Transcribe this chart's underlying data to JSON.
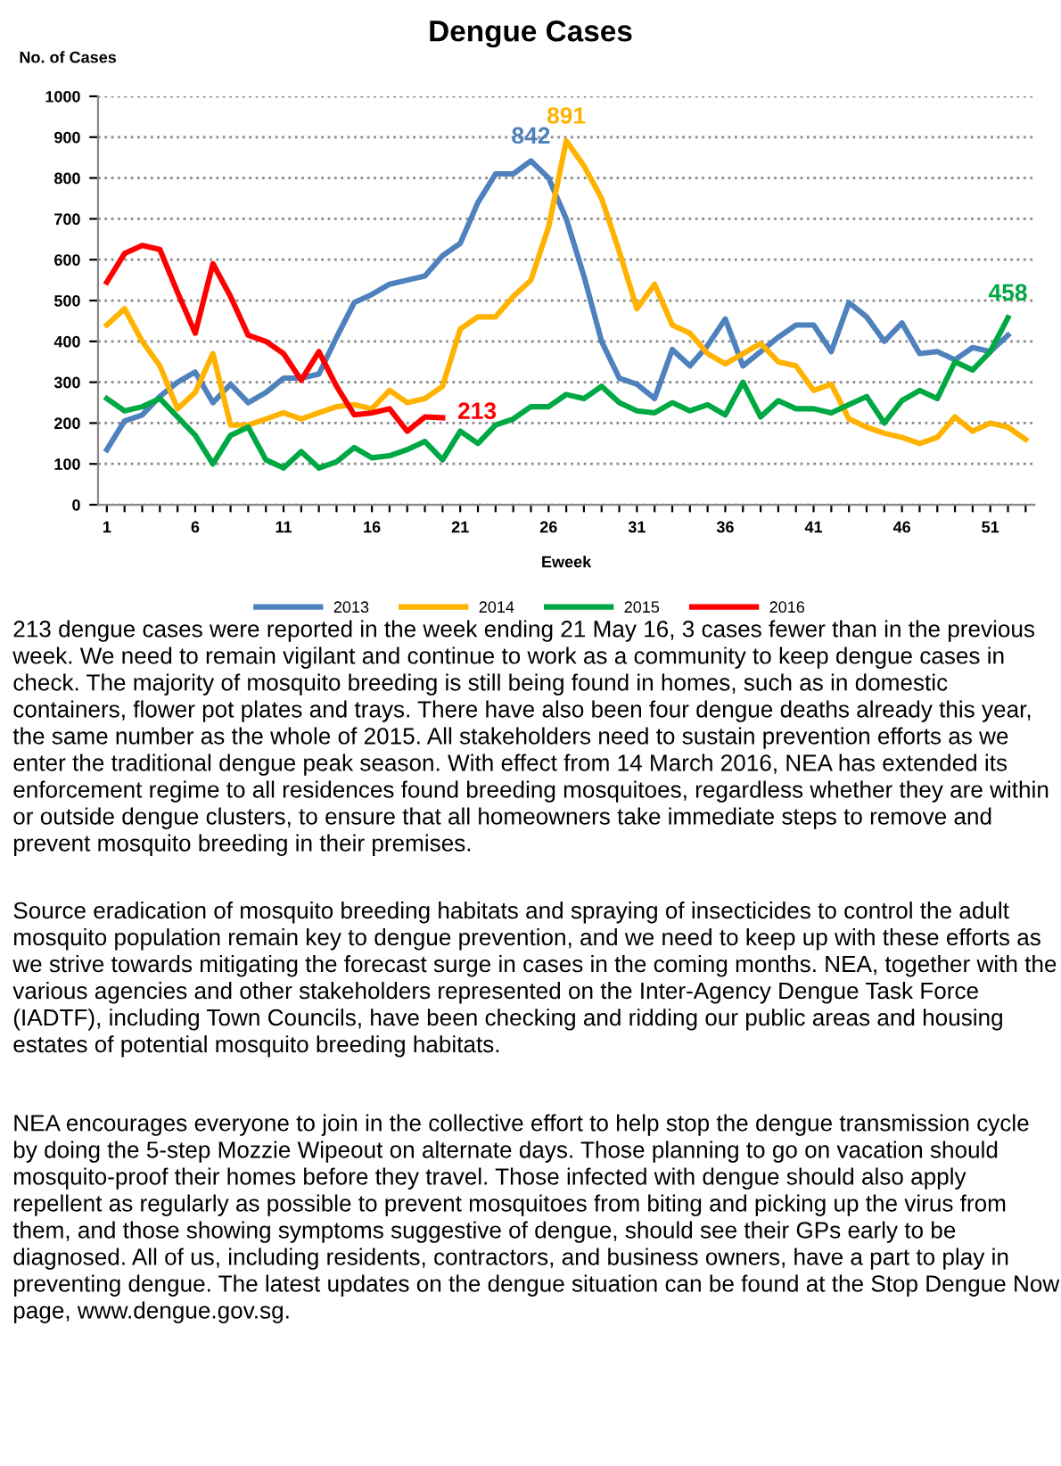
{
  "chart_data": {
    "type": "line",
    "title": "Dengue Cases",
    "ylabel": "No. of Cases",
    "xlabel": "Eweek",
    "categories": [
      "1",
      null,
      null,
      null,
      null,
      "6",
      null,
      null,
      null,
      null,
      "11",
      null,
      null,
      null,
      null,
      "16",
      null,
      null,
      null,
      null,
      "21",
      null,
      null,
      null,
      null,
      "26",
      null,
      null,
      null,
      null,
      "31",
      null,
      null,
      null,
      null,
      "36",
      null,
      null,
      null,
      null,
      "41",
      null,
      null,
      null,
      null,
      "46",
      null,
      null,
      null,
      null,
      "51",
      null,
      null
    ],
    "series": [
      {
        "name": "2013",
        "color": "#4f81bd",
        "values": [
          135,
          205,
          220,
          265,
          300,
          325,
          250,
          295,
          250,
          275,
          310,
          310,
          320,
          410,
          495,
          515,
          540,
          550,
          560,
          610,
          640,
          740,
          810,
          810,
          842,
          800,
          700,
          560,
          400,
          310,
          295,
          260,
          380,
          340,
          390,
          455,
          340,
          375,
          410,
          440,
          440,
          375,
          495,
          460,
          400,
          445,
          370,
          375,
          355,
          385,
          375,
          415,
          null
        ],
        "value_labels": [
          null,
          null,
          null,
          null,
          null,
          null,
          null,
          null,
          null,
          null,
          null,
          null,
          null,
          null,
          null,
          null,
          null,
          null,
          null,
          null,
          null,
          null,
          null,
          null,
          "842",
          null,
          null,
          null,
          null,
          null,
          null,
          null,
          null,
          null,
          null,
          null,
          null,
          null,
          null,
          null,
          null,
          null,
          null,
          null,
          null,
          null,
          null,
          null,
          null,
          null,
          null,
          null,
          null
        ]
      },
      {
        "name": "2014",
        "color": "#ffb300",
        "values": [
          440,
          480,
          400,
          340,
          235,
          275,
          370,
          195,
          195,
          210,
          225,
          210,
          225,
          240,
          245,
          235,
          280,
          250,
          260,
          290,
          430,
          460,
          460,
          510,
          550,
          680,
          891,
          830,
          750,
          620,
          480,
          540,
          440,
          420,
          370,
          345,
          370,
          395,
          350,
          340,
          280,
          295,
          210,
          190,
          175,
          165,
          150,
          165,
          215,
          180,
          200,
          190,
          160
        ],
        "value_labels": [
          null,
          null,
          null,
          null,
          null,
          null,
          null,
          null,
          null,
          null,
          null,
          null,
          null,
          null,
          null,
          null,
          null,
          null,
          null,
          null,
          null,
          null,
          null,
          null,
          null,
          null,
          "891",
          null,
          null,
          null,
          null,
          null,
          null,
          null,
          null,
          null,
          null,
          null,
          null,
          null,
          null,
          null,
          null,
          null,
          null,
          null,
          null,
          null,
          null,
          null,
          null,
          null,
          null
        ]
      },
      {
        "name": "2015",
        "color": "#00a843",
        "values": [
          260,
          230,
          240,
          260,
          215,
          170,
          100,
          170,
          190,
          110,
          90,
          130,
          90,
          105,
          140,
          115,
          120,
          135,
          155,
          110,
          180,
          150,
          195,
          210,
          240,
          240,
          270,
          260,
          290,
          250,
          230,
          225,
          250,
          230,
          245,
          220,
          300,
          215,
          255,
          235,
          235,
          225,
          245,
          265,
          200,
          255,
          280,
          260,
          350,
          330,
          375,
          458,
          null
        ],
        "value_labels": [
          null,
          null,
          null,
          null,
          null,
          null,
          null,
          null,
          null,
          null,
          null,
          null,
          null,
          null,
          null,
          null,
          null,
          null,
          null,
          null,
          null,
          null,
          null,
          null,
          null,
          null,
          null,
          null,
          null,
          null,
          null,
          null,
          null,
          null,
          null,
          null,
          null,
          null,
          null,
          null,
          null,
          null,
          null,
          null,
          null,
          null,
          null,
          null,
          null,
          null,
          null,
          "458",
          null
        ]
      },
      {
        "name": "2016",
        "color": "#ff0000",
        "values": [
          545,
          615,
          635,
          625,
          520,
          420,
          590,
          510,
          415,
          400,
          370,
          305,
          375,
          290,
          220,
          225,
          235,
          180,
          215,
          213,
          null,
          null,
          null,
          null,
          null,
          null,
          null,
          null,
          null,
          null,
          null,
          null,
          null,
          null,
          null,
          null,
          null,
          null,
          null,
          null,
          null,
          null,
          null,
          null,
          null,
          null,
          null,
          null,
          null,
          null,
          null,
          null,
          null
        ],
        "value_labels": [
          null,
          null,
          null,
          null,
          null,
          null,
          null,
          null,
          null,
          null,
          null,
          null,
          null,
          null,
          null,
          null,
          null,
          null,
          null,
          "213",
          null,
          null,
          null,
          null,
          null,
          null,
          null,
          null,
          null,
          null,
          null,
          null,
          null,
          null,
          null,
          null,
          null,
          null,
          null,
          null,
          null,
          null,
          null,
          null,
          null,
          null,
          null,
          null,
          null,
          null,
          null,
          null,
          null
        ]
      }
    ],
    "ylim": [
      0,
      1000
    ],
    "yticks": [
      0,
      100,
      200,
      300,
      400,
      500,
      600,
      700,
      800,
      900,
      1000
    ],
    "grid": "y",
    "legend": "bottom",
    "marker": "none",
    "line_style": "solid",
    "annotations": [
      "213 dengue cases were reported in the week ending 21 May 16, 3 cases fewer than in the previous week. We need to remain vigilant and continue to work as a community to keep dengue cases in check. The majority of mosquito breeding is still being found in homes, such as in domestic containers, flower pot plates and trays. There have also been four dengue deaths already this year, the same number as the whole of 2015. All stakeholders need to sustain prevention efforts as we enter the traditional dengue peak season. With effect from 14 March 2016, NEA has extended its enforcement regime to all residences found breeding mosquitoes, regardless whether they are within or outside dengue clusters, to ensure that all homeowners take immediate steps to remove and prevent mosquito breeding in their premises.",
      "Source eradication of mosquito breeding habitats and spraying of insecticides to control the adult mosquito population remain key to dengue prevention, and we need to keep up with these efforts as we strive towards mitigating the forecast surge in cases in the coming months. NEA, together with the various agencies and other stakeholders represented on the Inter-Agency Dengue Task Force (IADTF), including Town Councils, have been checking and ridding our public areas and housing estates of potential mosquito breeding habitats.",
      "NEA encourages everyone to join in the collective effort to help stop the dengue transmission cycle by doing the 5-step Mozzie Wipeout on alternate days. Those planning to go on vacation should mosquito-proof their homes before they travel. Those infected with dengue should also apply repellent as regularly as possible to prevent mosquitoes from biting and picking up the virus from them, and those showing symptoms suggestive of dengue, should see their GPs early to be diagnosed. All of us, including residents, contractors, and business owners, have a part to play in preventing dengue. The latest updates on the dengue situation can be found at the Stop Dengue Now page, www.dengue.gov.sg."
    ]
  }
}
